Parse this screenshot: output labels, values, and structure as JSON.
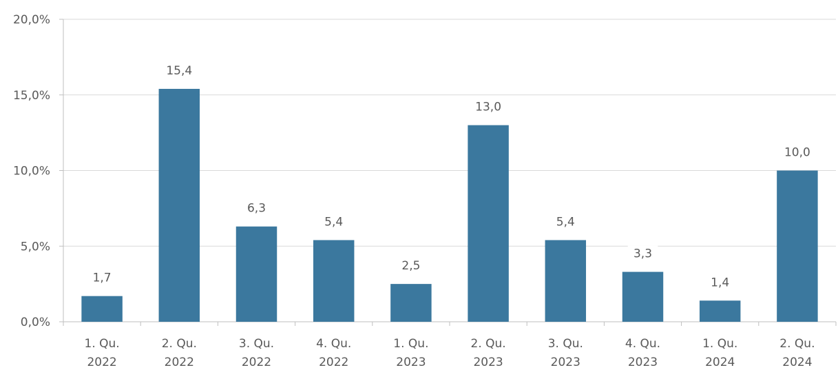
{
  "chart_data": {
    "type": "bar",
    "title": "",
    "xlabel": "",
    "ylabel": "",
    "ylim": [
      0,
      20
    ],
    "yticks": [
      0,
      5,
      10,
      15,
      20
    ],
    "ytick_labels": [
      "0,0%",
      "5,0%",
      "10,0%",
      "15,0%",
      "20,0%"
    ],
    "grid": true,
    "categories": [
      [
        "1. Qu.",
        "2022"
      ],
      [
        "2. Qu.",
        "2022"
      ],
      [
        "3. Qu.",
        "2022"
      ],
      [
        "4. Qu.",
        "2022"
      ],
      [
        "1. Qu.",
        "2023"
      ],
      [
        "2. Qu.",
        "2023"
      ],
      [
        "3. Qu.",
        "2023"
      ],
      [
        "4. Qu.",
        "2023"
      ],
      [
        "1. Qu.",
        "2024"
      ],
      [
        "2. Qu.",
        "2024"
      ]
    ],
    "values": [
      1.7,
      15.4,
      6.3,
      5.4,
      2.5,
      13.0,
      5.4,
      3.3,
      1.4,
      10.0
    ],
    "data_labels": [
      "1,7",
      "15,4",
      "6,3",
      "5,4",
      "2,5",
      "13,0",
      "5,4",
      "3,3",
      "1,4",
      "10,0"
    ],
    "colors": {
      "bar": "#3B789E",
      "grid": "#D9D9D9",
      "axis": "#BFBFBF",
      "text": "#595959"
    }
  }
}
